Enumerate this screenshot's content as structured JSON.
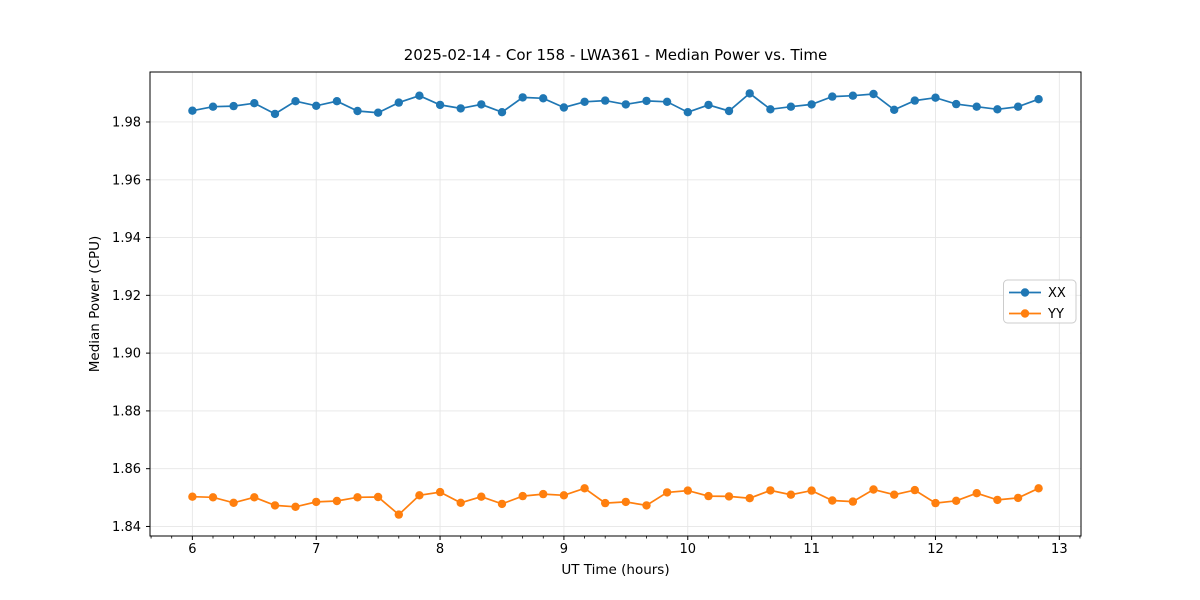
{
  "figure": {
    "title": "2025-02-14 - Cor 158 - LWA361 - Median Power vs. Time"
  },
  "colors": {
    "background": "#ffffff",
    "grid": "#e6e6e6",
    "spine": "#000000",
    "text": "#000000",
    "legend_border": "#cccccc",
    "series_xx": "#1f77b4",
    "series_yy": "#ff7f0e"
  },
  "chart_data": {
    "type": "line",
    "title": "2025-02-14 - Cor 158 - LWA361 - Median Power vs. Time",
    "xlabel": "UT Time (hours)",
    "ylabel": "Median Power (CPU)",
    "xlim": [
      5.658,
      13.175
    ],
    "ylim": [
      1.8367,
      1.9973
    ],
    "x_major_ticks": [
      6,
      7,
      8,
      9,
      10,
      11,
      12,
      13
    ],
    "x_minor_tick_step_hours": 0.16667,
    "y_ticks": [
      1.84,
      1.86,
      1.88,
      1.9,
      1.92,
      1.94,
      1.96,
      1.98
    ],
    "grid": true,
    "legend_position": "center right",
    "legend_entries": [
      "XX",
      "YY"
    ],
    "x": [
      6.0,
      6.167,
      6.333,
      6.5,
      6.667,
      6.833,
      7.0,
      7.167,
      7.333,
      7.5,
      7.667,
      7.833,
      8.0,
      8.167,
      8.333,
      8.5,
      8.667,
      8.833,
      9.0,
      9.167,
      9.333,
      9.5,
      9.667,
      9.833,
      10.0,
      10.167,
      10.333,
      10.5,
      10.667,
      10.833,
      11.0,
      11.167,
      11.333,
      11.5,
      11.667,
      11.833,
      12.0,
      12.167,
      12.333,
      12.5,
      12.667,
      12.833
    ],
    "series": [
      {
        "name": "XX",
        "color": "#1f77b4",
        "marker": "circle",
        "values": [
          1.9839,
          1.9853,
          1.9855,
          1.9865,
          1.9828,
          1.9872,
          1.9856,
          1.9872,
          1.9838,
          1.9832,
          1.9867,
          1.9891,
          1.9859,
          1.9847,
          1.9861,
          1.9834,
          1.9885,
          1.9882,
          1.985,
          1.987,
          1.9874,
          1.9861,
          1.9873,
          1.987,
          1.9834,
          1.9859,
          1.9838,
          1.9899,
          1.9844,
          1.9853,
          1.9861,
          1.9888,
          1.9891,
          1.9897,
          1.9842,
          1.9874,
          1.9884,
          1.9862,
          1.9853,
          1.9844,
          1.9853,
          1.9879
        ]
      },
      {
        "name": "YY",
        "color": "#ff7f0e",
        "marker": "circle",
        "values": [
          1.8503,
          1.8501,
          1.8482,
          1.8501,
          1.8473,
          1.8468,
          1.8485,
          1.8488,
          1.8501,
          1.8502,
          1.8441,
          1.8508,
          1.8519,
          1.8482,
          1.8503,
          1.8478,
          1.8505,
          1.8512,
          1.8508,
          1.8532,
          1.8481,
          1.8485,
          1.8473,
          1.8518,
          1.8524,
          1.8505,
          1.8504,
          1.8498,
          1.8525,
          1.851,
          1.8524,
          1.849,
          1.8486,
          1.8528,
          1.851,
          1.8526,
          1.8481,
          1.8489,
          1.8515,
          1.8492,
          1.8499,
          1.8532
        ]
      }
    ]
  }
}
